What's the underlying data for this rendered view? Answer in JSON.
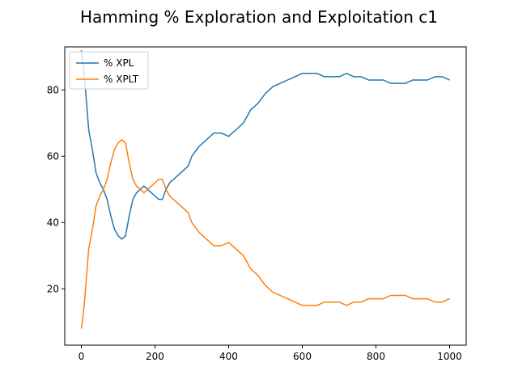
{
  "chart_data": {
    "type": "line",
    "title": "Hamming % Exploration and Exploitation c1",
    "xlabel": "",
    "ylabel": "",
    "xlim": [
      -45,
      1045
    ],
    "ylim": [
      3,
      93
    ],
    "xticks": [
      0,
      200,
      400,
      600,
      800,
      1000
    ],
    "yticks": [
      20,
      40,
      60,
      80
    ],
    "grid": false,
    "legend_position": "top-left",
    "series": [
      {
        "name": "% XPL",
        "color": "#1f77b4",
        "x": [
          0,
          5,
          10,
          15,
          20,
          30,
          40,
          50,
          60,
          70,
          80,
          90,
          100,
          110,
          120,
          130,
          140,
          150,
          160,
          170,
          180,
          190,
          200,
          210,
          220,
          230,
          240,
          250,
          260,
          270,
          280,
          290,
          300,
          320,
          340,
          360,
          380,
          400,
          420,
          440,
          460,
          480,
          500,
          520,
          540,
          560,
          580,
          600,
          620,
          640,
          660,
          680,
          700,
          720,
          740,
          760,
          780,
          800,
          820,
          840,
          860,
          880,
          900,
          920,
          940,
          960,
          980,
          1000
        ],
        "y": [
          92,
          88,
          82,
          75,
          68,
          62,
          55,
          52,
          50,
          47,
          42,
          38,
          36,
          35,
          36,
          42,
          47,
          49,
          50,
          51,
          50,
          49,
          48,
          47,
          47,
          50,
          52,
          53,
          54,
          55,
          56,
          57,
          60,
          63,
          65,
          67,
          67,
          66,
          68,
          70,
          74,
          76,
          79,
          81,
          82,
          83,
          84,
          85,
          85,
          85,
          84,
          84,
          84,
          85,
          84,
          84,
          83,
          83,
          83,
          82,
          82,
          82,
          83,
          83,
          83,
          84,
          84,
          83
        ]
      },
      {
        "name": "% XPLT",
        "color": "#ff7f0e",
        "x": [
          0,
          5,
          10,
          15,
          20,
          30,
          40,
          50,
          60,
          70,
          80,
          90,
          100,
          110,
          120,
          130,
          140,
          150,
          160,
          170,
          180,
          190,
          200,
          210,
          220,
          230,
          240,
          250,
          260,
          270,
          280,
          290,
          300,
          320,
          340,
          360,
          380,
          400,
          420,
          440,
          460,
          480,
          500,
          520,
          540,
          560,
          580,
          600,
          620,
          640,
          660,
          680,
          700,
          720,
          740,
          760,
          780,
          800,
          820,
          840,
          860,
          880,
          900,
          920,
          940,
          960,
          980,
          1000
        ],
        "y": [
          8,
          12,
          18,
          25,
          32,
          38,
          45,
          48,
          50,
          53,
          58,
          62,
          64,
          65,
          64,
          58,
          53,
          51,
          50,
          49,
          50,
          51,
          52,
          53,
          53,
          50,
          48,
          47,
          46,
          45,
          44,
          43,
          40,
          37,
          35,
          33,
          33,
          34,
          32,
          30,
          26,
          24,
          21,
          19,
          18,
          17,
          16,
          15,
          15,
          15,
          16,
          16,
          16,
          15,
          16,
          16,
          17,
          17,
          17,
          18,
          18,
          18,
          17,
          17,
          17,
          16,
          16,
          17
        ]
      }
    ]
  }
}
